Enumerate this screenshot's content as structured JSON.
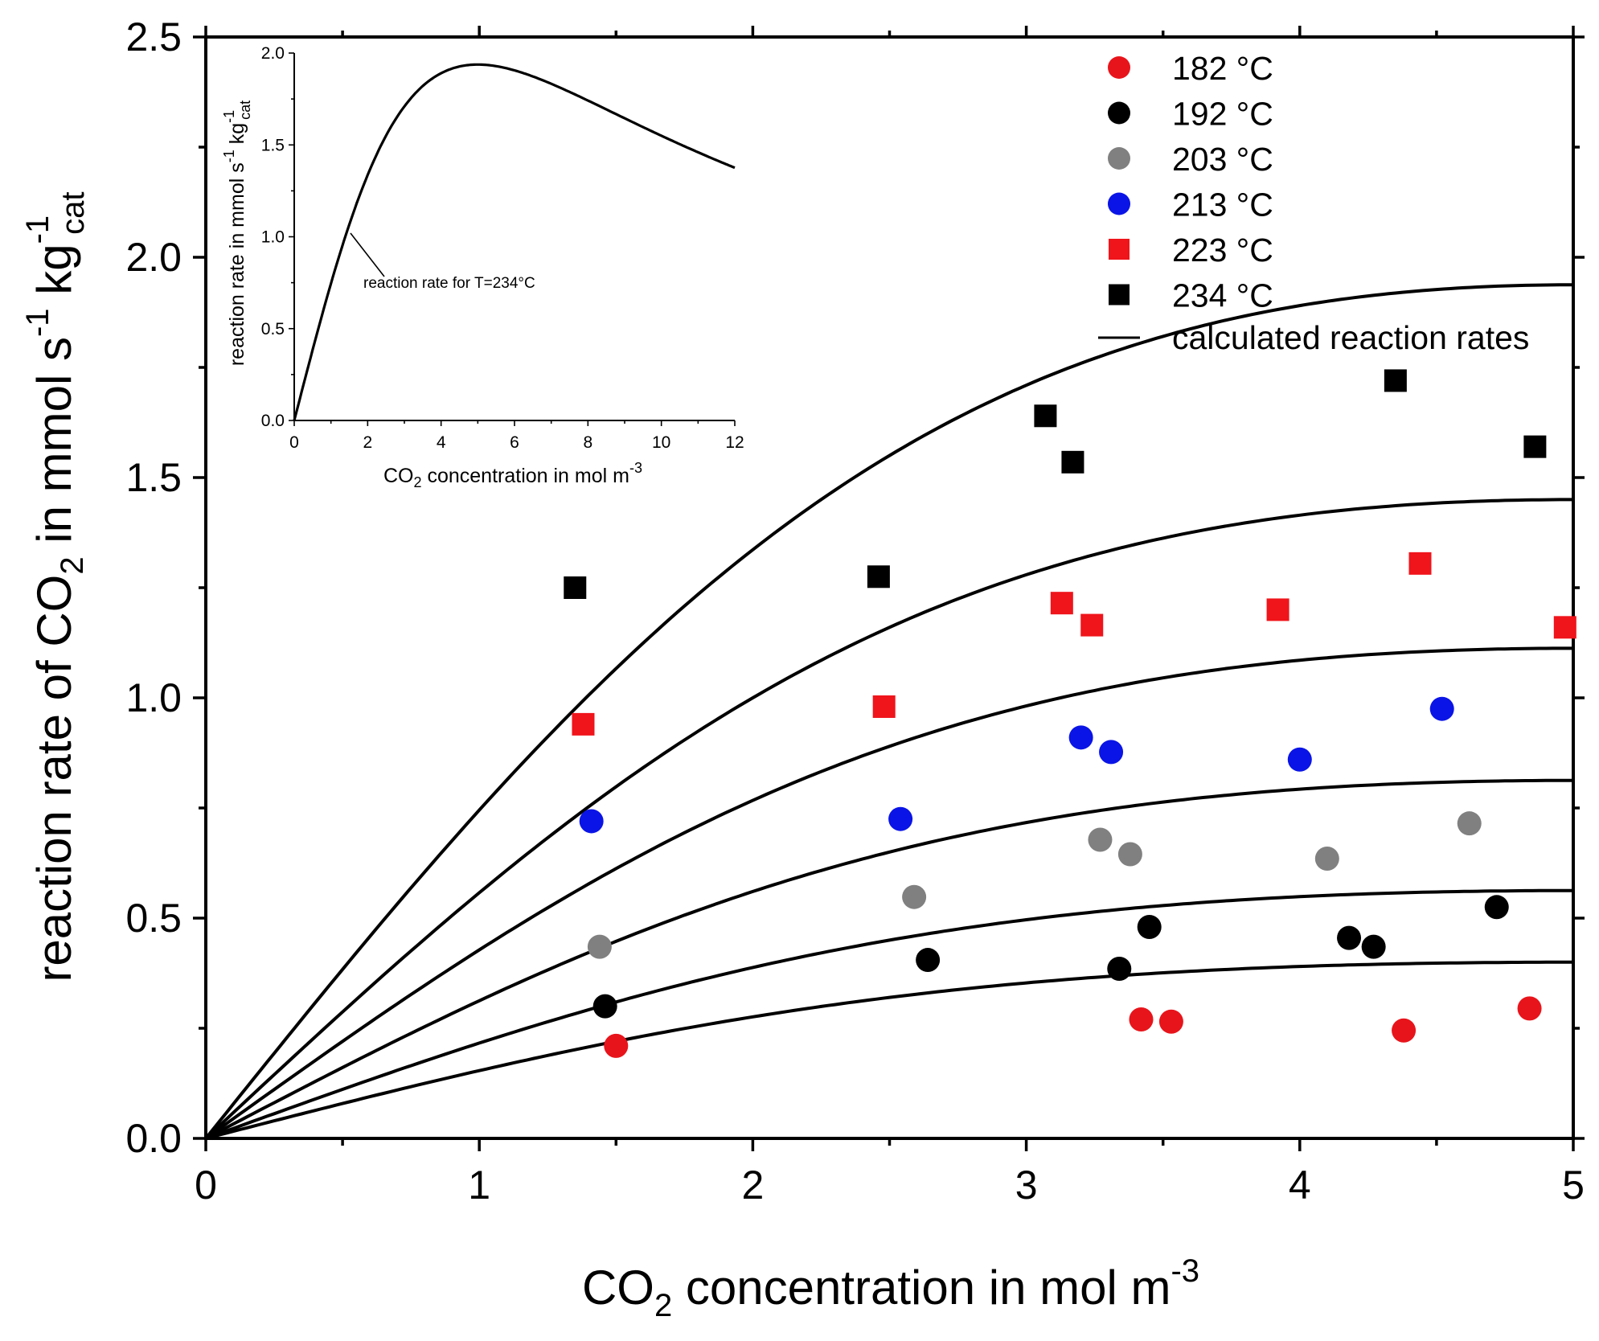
{
  "chart_data": [
    {
      "type": "scatter",
      "title": "",
      "xlabel": {
        "prefix": "CO",
        "sub": "2",
        "mid": " concentration in mol m",
        "sup": "-3"
      },
      "ylabel": {
        "a": "reaction rate of CO",
        "sub1": "2",
        "b": " in mmol s",
        "sup1": "-1",
        "c": " kg",
        "sup2": "-1",
        "sub2": "cat"
      },
      "xlim": [
        0,
        5
      ],
      "ylim": [
        0,
        2.5
      ],
      "x_ticks": [
        "0",
        "1",
        "2",
        "3",
        "4",
        "5"
      ],
      "y_ticks": [
        "0.0",
        "0.5",
        "1.0",
        "1.5",
        "2.0",
        "2.5"
      ],
      "legend_position": "top-right",
      "series": [
        {
          "name": "182 °C",
          "marker": "circle",
          "color": "#e8141b",
          "x": [
            1.5,
            3.42,
            3.53,
            4.38,
            4.84
          ],
          "y": [
            0.21,
            0.27,
            0.265,
            0.245,
            0.295
          ]
        },
        {
          "name": "192 °C",
          "marker": "circle",
          "color": "#000000",
          "x": [
            1.46,
            2.64,
            3.34,
            3.45,
            4.18,
            4.27,
            4.72
          ],
          "y": [
            0.3,
            0.405,
            0.385,
            0.48,
            0.455,
            0.435,
            0.525
          ]
        },
        {
          "name": "203 °C",
          "marker": "circle",
          "color": "#808080",
          "x": [
            1.44,
            2.59,
            3.27,
            3.38,
            4.1,
            4.62
          ],
          "y": [
            0.435,
            0.548,
            0.678,
            0.645,
            0.635,
            0.715
          ]
        },
        {
          "name": "213 °C",
          "marker": "circle",
          "color": "#0a14e6",
          "x": [
            1.41,
            2.54,
            3.2,
            3.31,
            4.0,
            4.52
          ],
          "y": [
            0.72,
            0.725,
            0.91,
            0.877,
            0.86,
            0.975
          ]
        },
        {
          "name": "223 °C",
          "marker": "square",
          "color": "#f0141b",
          "x": [
            1.38,
            2.48,
            3.13,
            3.24,
            3.92,
            4.44,
            4.97
          ],
          "y": [
            0.94,
            0.98,
            1.215,
            1.165,
            1.2,
            1.305,
            1.16
          ]
        },
        {
          "name": "234 °C",
          "marker": "square",
          "color": "#000000",
          "x": [
            1.35,
            2.46,
            3.07,
            3.17,
            4.35,
            4.86
          ],
          "y": [
            1.25,
            1.275,
            1.64,
            1.535,
            1.72,
            1.57
          ]
        }
      ],
      "fitted_curves": {
        "name": "calculated reaction rates",
        "model": "rate = a*c/(1 + b*c^2)",
        "b": 0.04,
        "a_per_curve": [
          0.16,
          0.225,
          0.325,
          0.445,
          0.58,
          0.775
        ]
      }
    },
    {
      "type": "line",
      "title": "inset",
      "xlabel": {
        "prefix": "CO",
        "sub": "2",
        "mid": " concentration in mol m",
        "sup": "-3"
      },
      "ylabel": {
        "a": "reaction rate in mmol s",
        "sup1": "-1",
        "c": " kg",
        "sup2": "-1",
        "sub2": "cat"
      },
      "xlim": [
        0,
        12
      ],
      "ylim": [
        0,
        2.0
      ],
      "x_ticks": [
        "0",
        "2",
        "4",
        "6",
        "8",
        "10",
        "12"
      ],
      "y_ticks": [
        "0.0",
        "0.5",
        "1.0",
        "1.5",
        "2.0"
      ],
      "curve": {
        "model": "rate = a*c/(1 + b*c^2)",
        "a": 0.775,
        "b": 0.04
      },
      "annotation": {
        "text": "reaction rate for T=234°C",
        "x": 1.6,
        "y": 1.04
      }
    }
  ]
}
